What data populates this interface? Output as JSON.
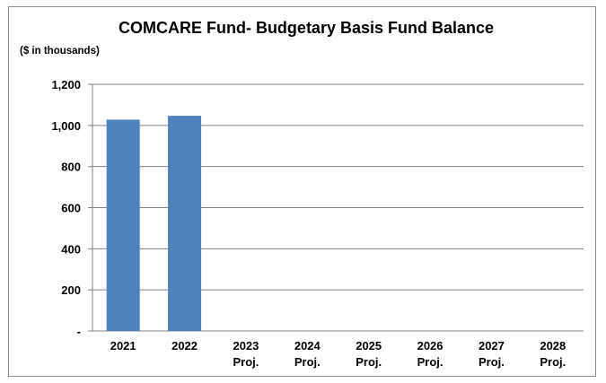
{
  "chart_data": {
    "type": "bar",
    "title": "COMCARE Fund- Budgetary Basis Fund Balance",
    "subtitle": "($ in thousands)",
    "categories": [
      [
        "2021"
      ],
      [
        "2022"
      ],
      [
        "2023",
        "Proj."
      ],
      [
        "2024",
        "Proj."
      ],
      [
        "2025",
        "Proj."
      ],
      [
        "2026",
        "Proj."
      ],
      [
        "2027",
        "Proj."
      ],
      [
        "2028",
        "Proj."
      ]
    ],
    "values": [
      1028,
      1047,
      null,
      null,
      null,
      null,
      null,
      null
    ],
    "ylim": [
      0,
      1200
    ],
    "yticks": [
      0,
      200,
      400,
      600,
      800,
      1000,
      1200
    ],
    "ytick_labels": [
      "-",
      "200",
      "400",
      "600",
      "800",
      "1,000",
      "1,200"
    ],
    "grid": true,
    "bar_color": "#4f81bd"
  }
}
